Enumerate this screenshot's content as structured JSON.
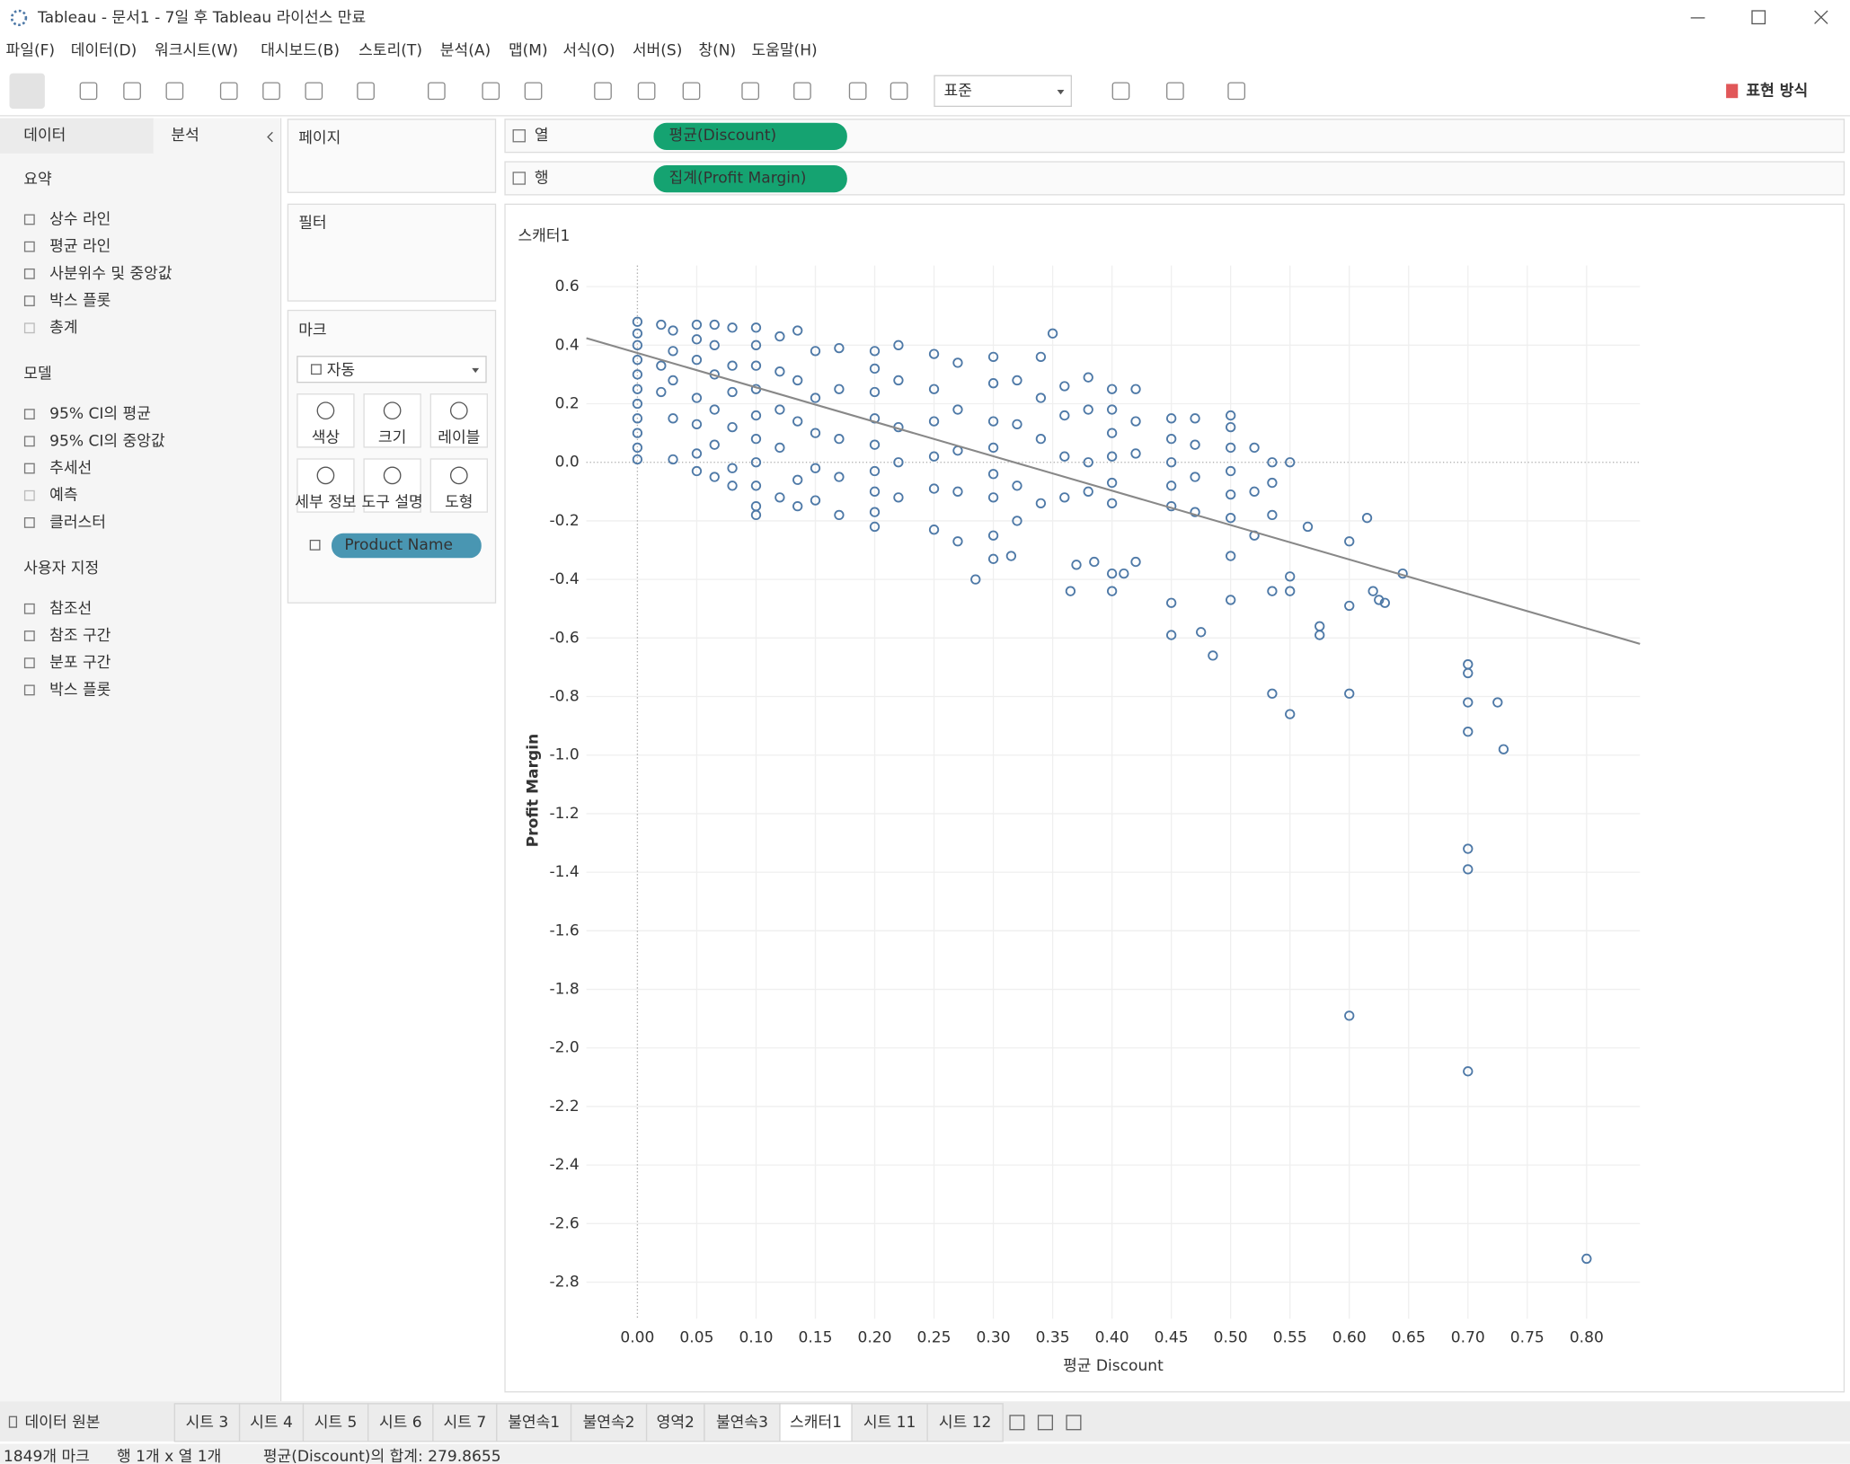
{
  "window_title": "Tableau - 문서1 - 7일 후 Tableau 라이선스 만료",
  "menu": [
    "파일(F)",
    "데이터(D)",
    "워크시트(W)",
    "대시보드(B)",
    "스토리(T)",
    "분석(A)",
    "맵(M)",
    "서식(O)",
    "서버(S)",
    "창(N)",
    "도움말(H)"
  ],
  "toolbar": {
    "fit": "표준",
    "show_me": "표현 방식"
  },
  "side_panel": {
    "tabs": [
      "데이터",
      "분석"
    ],
    "sections": [
      {
        "title": "요약",
        "items": [
          "상수 라인",
          "평균 라인",
          "사분위수 및 중앙값",
          "박스 플롯",
          "총계"
        ]
      },
      {
        "title": "모델",
        "items": [
          "95% CI의 평균",
          "95% CI의 중앙값",
          "추세선",
          "예측",
          "클러스터"
        ]
      },
      {
        "title": "사용자 지정",
        "items": [
          "참조선",
          "참조 구간",
          "분포 구간",
          "박스 플롯"
        ]
      }
    ]
  },
  "cards": {
    "pages": "페이지",
    "filters": "필터",
    "marks": {
      "title": "마크",
      "mark_type": "자동",
      "buttons": [
        "색상",
        "크기",
        "레이블",
        "세부 정보",
        "도구 설명",
        "도형"
      ],
      "pill": "Product Name"
    }
  },
  "shelves": {
    "columns": {
      "label": "열",
      "pill": "평균(Discount)"
    },
    "rows": {
      "label": "행",
      "pill": "집계(Profit Margin)"
    }
  },
  "chart_data": {
    "type": "scatter",
    "title": "스캐터1",
    "x_label": "평균 Discount",
    "y_label": "Profit Margin",
    "xlim": [
      -0.043,
      0.845
    ],
    "ylim": [
      -2.925,
      0.672
    ],
    "grid": true,
    "color": "#4e79a7",
    "xticks": [
      {
        "value": 0,
        "label": "0.00"
      },
      0.05,
      {
        "value": 0.1,
        "label": "0.10"
      },
      0.15,
      {
        "value": 0.2,
        "label": "0.20"
      },
      0.25,
      {
        "value": 0.3,
        "label": "0.30"
      },
      0.35,
      {
        "value": 0.4,
        "label": "0.40"
      },
      0.45,
      {
        "value": 0.5,
        "label": "0.50"
      },
      0.55,
      {
        "value": 0.6,
        "label": "0.60"
      },
      0.65,
      {
        "value": 0.7,
        "label": "0.70"
      },
      0.75,
      {
        "value": 0.8,
        "label": "0.80"
      }
    ],
    "yticks": [
      0.6,
      0.4,
      0.2,
      {
        "value": 0,
        "label": "0.0"
      },
      -0.2,
      -0.4,
      -0.6,
      -0.8,
      {
        "value": -1,
        "label": "-1.0"
      },
      -1.2,
      -1.4,
      -1.6,
      -1.8,
      {
        "value": -2,
        "label": "-2.0"
      },
      -2.2,
      -2.4,
      -2.6,
      -2.8
    ],
    "x": [
      0,
      0,
      0,
      0,
      0,
      0,
      0,
      0,
      0,
      0,
      0,
      0.02,
      0.02,
      0.02,
      0.03,
      0.03,
      0.03,
      0.03,
      0.03,
      0.05,
      0.05,
      0.05,
      0.05,
      0.05,
      0.05,
      0.05,
      0.065,
      0.065,
      0.065,
      0.065,
      0.065,
      0.065,
      0.08,
      0.08,
      0.08,
      0.08,
      0.08,
      0.08,
      0.1,
      0.1,
      0.1,
      0.1,
      0.1,
      0.1,
      0.1,
      0.1,
      0.1,
      0.1,
      0.12,
      0.12,
      0.12,
      0.12,
      0.12,
      0.135,
      0.135,
      0.135,
      0.135,
      0.135,
      0.15,
      0.15,
      0.15,
      0.15,
      0.15,
      0.17,
      0.17,
      0.17,
      0.17,
      0.17,
      0.2,
      0.2,
      0.2,
      0.2,
      0.2,
      0.2,
      0.2,
      0.2,
      0.2,
      0.22,
      0.22,
      0.22,
      0.22,
      0.22,
      0.25,
      0.25,
      0.25,
      0.25,
      0.25,
      0.25,
      0.27,
      0.27,
      0.27,
      0.27,
      0.27,
      0.3,
      0.3,
      0.3,
      0.3,
      0.3,
      0.3,
      0.3,
      0.32,
      0.32,
      0.32,
      0.32,
      0.34,
      0.34,
      0.34,
      0.34,
      0.36,
      0.36,
      0.36,
      0.36,
      0.38,
      0.38,
      0.38,
      0.38,
      0.4,
      0.4,
      0.4,
      0.4,
      0.4,
      0.4,
      0.42,
      0.42,
      0.42,
      0.45,
      0.45,
      0.45,
      0.45,
      0.45,
      0.47,
      0.47,
      0.47,
      0.47,
      0.5,
      0.5,
      0.5,
      0.5,
      0.5,
      0.5,
      0.52,
      0.52,
      0.52,
      0.535,
      0.535,
      0.535,
      0.55,
      0.35,
      0.285,
      0.3,
      0.315,
      0.365,
      0.37,
      0.385,
      0.4,
      0.4,
      0.41,
      0.42,
      0.45,
      0.45,
      0.475,
      0.485,
      0.5,
      0.5,
      0.535,
      0.55,
      0.55,
      0.535,
      0.55,
      0.565,
      0.575,
      0.575,
      0.6,
      0.6,
      0.6,
      0.6,
      0.615,
      0.62,
      0.625,
      0.63,
      0.645,
      0.7,
      0.7,
      0.7,
      0.7,
      0.7,
      0.7,
      0.7,
      0.725,
      0.73,
      0.8
    ],
    "y": [
      0.48,
      0.44,
      0.4,
      0.35,
      0.3,
      0.25,
      0.2,
      0.15,
      0.1,
      0.05,
      0.01,
      0.47,
      0.33,
      0.24,
      0.45,
      0.38,
      0.28,
      0.15,
      0.01,
      0.47,
      0.42,
      0.35,
      0.22,
      0.13,
      0.03,
      -0.03,
      0.47,
      0.4,
      0.3,
      0.18,
      0.06,
      -0.05,
      0.46,
      0.33,
      0.24,
      0.12,
      -0.02,
      -0.08,
      0.46,
      0.4,
      0.33,
      0.25,
      0.16,
      0.08,
      0,
      -0.08,
      -0.15,
      -0.18,
      0.43,
      0.31,
      0.18,
      0.05,
      -0.12,
      0.45,
      0.28,
      0.14,
      -0.06,
      -0.15,
      0.38,
      0.22,
      0.1,
      -0.02,
      -0.13,
      0.39,
      0.25,
      0.08,
      -0.05,
      -0.18,
      0.38,
      0.32,
      0.24,
      0.15,
      0.06,
      -0.03,
      -0.1,
      -0.17,
      -0.22,
      0.4,
      0.28,
      0.12,
      0,
      -0.12,
      0.37,
      0.25,
      0.14,
      0.02,
      -0.09,
      -0.23,
      0.34,
      0.18,
      0.04,
      -0.1,
      -0.27,
      0.36,
      0.27,
      0.14,
      0.05,
      -0.04,
      -0.12,
      -0.25,
      0.28,
      0.13,
      -0.08,
      -0.2,
      0.36,
      0.22,
      0.08,
      -0.14,
      0.26,
      0.16,
      0.02,
      -0.12,
      0.29,
      0.18,
      0,
      -0.1,
      0.25,
      0.18,
      0.1,
      0.02,
      -0.07,
      -0.14,
      0.25,
      0.14,
      0.03,
      0.15,
      0.08,
      0,
      -0.08,
      -0.15,
      0.15,
      0.06,
      -0.05,
      -0.17,
      0.16,
      0.12,
      0.05,
      -0.03,
      -0.11,
      -0.19,
      0.05,
      -0.1,
      -0.25,
      0,
      -0.07,
      -0.18,
      0,
      0.44,
      -0.4,
      -0.33,
      -0.32,
      -0.44,
      -0.35,
      -0.34,
      -0.44,
      -0.38,
      -0.38,
      -0.34,
      -0.48,
      -0.59,
      -0.58,
      -0.66,
      -0.32,
      -0.47,
      -0.44,
      -0.39,
      -0.44,
      -0.79,
      -0.86,
      -0.22,
      -0.56,
      -0.59,
      -0.27,
      -0.49,
      -0.79,
      -1.89,
      -0.19,
      -0.44,
      -0.47,
      -0.48,
      -0.38,
      -0.69,
      -0.72,
      -0.82,
      -0.92,
      -1.32,
      -1.39,
      -2.08,
      -0.82,
      -0.98,
      -2.72
    ],
    "trend_line": {
      "x": [
        -0.043,
        0.845
      ],
      "y": [
        0.424,
        -0.62
      ],
      "color": "#888888"
    }
  },
  "sheet_tabs": {
    "data_source": "데이터 원본",
    "tabs": [
      "시트 3",
      "시트 4",
      "시트 5",
      "시트 6",
      "시트 7",
      "불연속1",
      "불연속2",
      "영역2",
      "불연속3",
      "스캐터1",
      "시트 11",
      "시트 12"
    ],
    "active": 9
  },
  "status_bar": [
    "1849개 마크",
    "행 1개 x 열 1개",
    "평균(Discount)의 합계: 279.8655"
  ]
}
